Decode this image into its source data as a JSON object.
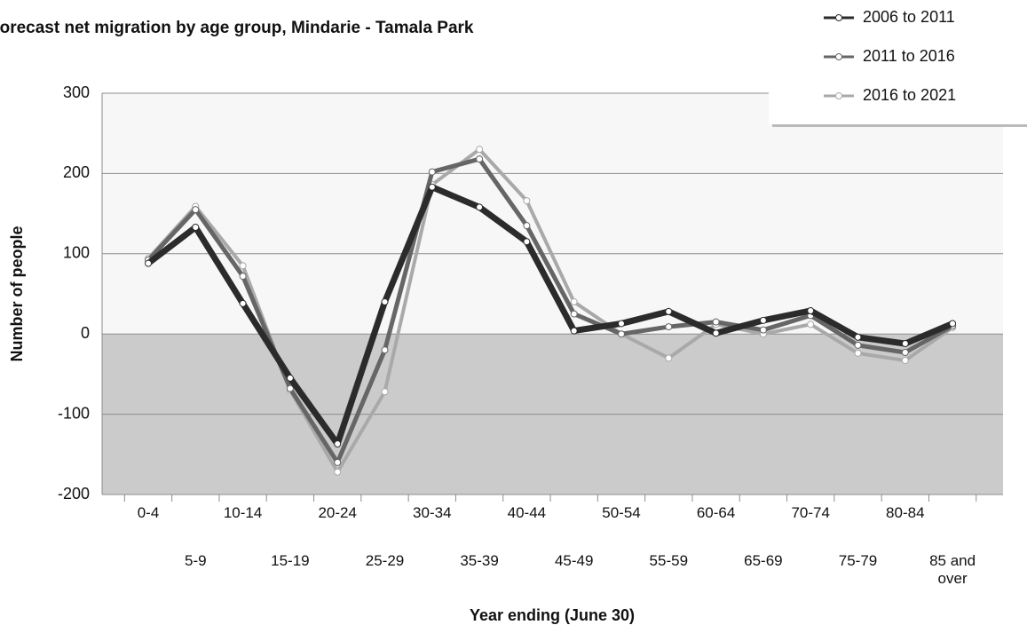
{
  "chart_data": {
    "type": "line",
    "title": "Forecast net migration by age group, Mindarie - Tamala Park",
    "y_label": "Number of people",
    "x_label": "Year ending (June 30)",
    "categories": [
      "0-4",
      "5-9",
      "10-14",
      "15-19",
      "20-24",
      "25-29",
      "30-34",
      "35-39",
      "40-44",
      "45-49",
      "50-54",
      "55-59",
      "60-64",
      "65-69",
      "70-74",
      "75-79",
      "80-84",
      "85 and over"
    ],
    "series": [
      {
        "name": "2006 to 2011",
        "color": "#2b2b2b",
        "values": [
          88,
          133,
          38,
          -55,
          -137,
          40,
          183,
          158,
          115,
          4,
          13,
          28,
          1,
          17,
          29,
          -4,
          -12,
          13
        ]
      },
      {
        "name": "2011 to 2016",
        "color": "#666666",
        "values": [
          92,
          155,
          72,
          -68,
          -160,
          -20,
          202,
          218,
          135,
          25,
          0,
          9,
          15,
          5,
          23,
          -14,
          -23,
          10
        ]
      },
      {
        "name": "2016 to 2021",
        "color": "#a9a9a9",
        "values": [
          94,
          159,
          85,
          -70,
          -172,
          -72,
          186,
          230,
          166,
          40,
          0,
          -30,
          12,
          0,
          12,
          -24,
          -33,
          8
        ]
      }
    ],
    "ylim": [
      -200,
      300
    ],
    "yticks": [
      -200,
      -100,
      0,
      100,
      200,
      300
    ],
    "grid": true,
    "legend": "top-right"
  }
}
